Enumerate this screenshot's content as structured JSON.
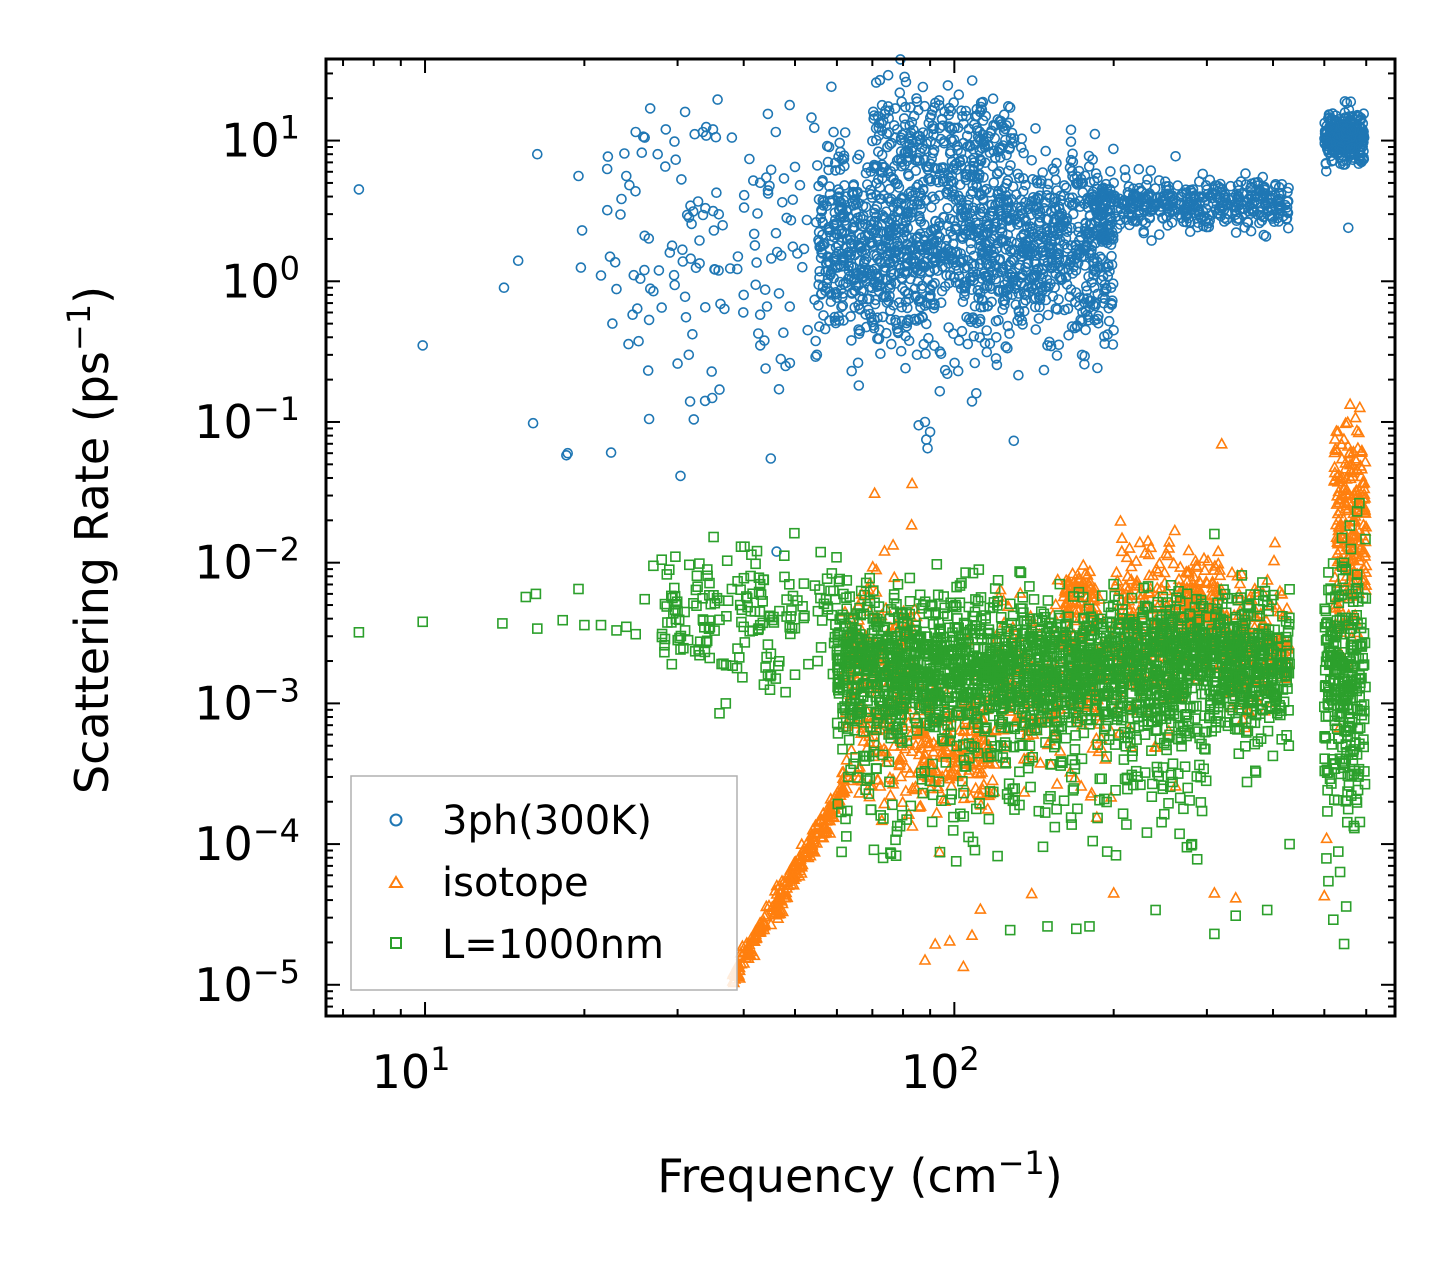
{
  "chart_data": {
    "type": "scatter",
    "title": "",
    "xlabel": "Frequency (cm",
    "xlabel_sup": "−1",
    "xlabel_end": ")",
    "ylabel": "Scattering Rate (ps",
    "ylabel_sup": "−1",
    "ylabel_end": ")",
    "x_scale": "log",
    "y_scale": "log",
    "xlim": [
      6.5,
      680
    ],
    "ylim": [
      6e-06,
      38
    ],
    "x_ticks": [
      {
        "value": 10,
        "base": "10",
        "exp": "1"
      },
      {
        "value": 100,
        "base": "10",
        "exp": "2"
      }
    ],
    "y_ticks": [
      {
        "value": 10,
        "base": "10",
        "exp": "1"
      },
      {
        "value": 1,
        "base": "10",
        "exp": "0"
      },
      {
        "value": 0.1,
        "base": "10",
        "exp": "−1"
      },
      {
        "value": 0.01,
        "base": "10",
        "exp": "−2"
      },
      {
        "value": 0.001,
        "base": "10",
        "exp": "−3"
      },
      {
        "value": 0.0001,
        "base": "10",
        "exp": "−4"
      },
      {
        "value": 1e-05,
        "base": "10",
        "exp": "−5"
      }
    ],
    "legend_position": "bottom-left",
    "series": [
      {
        "name": "3ph(300K)",
        "marker": "circle",
        "color": "#1f77b4",
        "points": [
          [
            7.5,
            4.5
          ],
          [
            9.9,
            0.35
          ],
          [
            14.1,
            0.9
          ],
          [
            15.0,
            1.4
          ],
          [
            16.0,
            0.098
          ],
          [
            16.3,
            8.0
          ],
          [
            18.5,
            0.058
          ],
          [
            18.6,
            0.06
          ],
          [
            19.5,
            5.6
          ],
          [
            19.7,
            1.25
          ],
          [
            19.8,
            2.3
          ],
          [
            21.5,
            1.1
          ],
          [
            23.0,
            0.88
          ],
          [
            23.8,
            8.1
          ],
          [
            24.0,
            5.6
          ],
          [
            25.0,
            11.5
          ],
          [
            26.0,
            10.5
          ],
          [
            26.5,
            0.105
          ],
          [
            27.0,
            0.85
          ],
          [
            28.0,
            0.65
          ],
          [
            28.5,
            12.0
          ],
          [
            29.0,
            1.6
          ],
          [
            30.0,
            0.26
          ],
          [
            30.5,
            5.3
          ],
          [
            31.0,
            16.0
          ],
          [
            31.5,
            0.3
          ],
          [
            32.0,
            0.42
          ],
          [
            33.5,
            11.5
          ],
          [
            35.0,
            12.0
          ],
          [
            36.0,
            0.17
          ],
          [
            36.5,
            2.5
          ],
          [
            38.0,
            10.5
          ],
          [
            39.0,
            1.5
          ],
          [
            40.0,
            0.8
          ],
          [
            41.0,
            7.4
          ],
          [
            42.0,
            1.8
          ],
          [
            43.0,
            0.35
          ],
          [
            44.0,
            0.24
          ],
          [
            45.0,
            0.055
          ],
          [
            46.0,
            11.5
          ],
          [
            47.0,
            0.28
          ],
          [
            48.0,
            0.25
          ],
          [
            50.0,
            6.5
          ],
          [
            52.0,
            1.7
          ],
          [
            55.0,
            0.3
          ],
          [
            58.0,
            9.0
          ],
          [
            62.0,
            4.8
          ],
          [
            64.0,
            0.23
          ],
          [
            75.0,
            17.5
          ],
          [
            78.0,
            12.0
          ],
          [
            85.0,
            0.3
          ],
          [
            88.0,
            0.1
          ],
          [
            88.5,
            0.075
          ],
          [
            89.0,
            0.065
          ],
          [
            90.0,
            0.085
          ],
          [
            97.0,
            0.22
          ],
          [
            108.0,
            0.14
          ],
          [
            110.0,
            0.16
          ],
          [
            120.0,
            0.4
          ],
          [
            135.0,
            0.7
          ],
          [
            150.0,
            0.35
          ],
          [
            200.0,
            5.0
          ],
          [
            210.0,
            6.2
          ],
          [
            228.0,
            2.2
          ],
          [
            275.0,
            3.5
          ],
          [
            300.0,
            2.8
          ],
          [
            335.0,
            3.9
          ],
          [
            390.0,
            3.3
          ],
          [
            425.0,
            2.8
          ],
          [
            510.0,
            10.0
          ],
          [
            540.0,
            11.0
          ],
          [
            555.0,
            2.4
          ],
          [
            560.0,
            8.0
          ],
          [
            580.0,
            15.0
          ]
        ],
        "clusters": [
          {
            "x_range": [
              22,
              62
            ],
            "logy_mean": 0.3,
            "logy_sd": 0.55,
            "n": 130
          },
          {
            "x_range": [
              55,
              200
            ],
            "logy_mean": 0.25,
            "logy_sd": 0.33,
            "n": 1500
          },
          {
            "x_range": [
              70,
              130
            ],
            "logy_mean": 1.0,
            "logy_sd": 0.18,
            "n": 250
          },
          {
            "x_range": [
              180,
              430
            ],
            "logy_mean": 0.55,
            "logy_sd": 0.09,
            "n": 420
          },
          {
            "x_range": [
              500,
              595
            ],
            "logy_mean": 1.02,
            "logy_sd": 0.09,
            "n": 300
          }
        ]
      },
      {
        "name": "isotope",
        "marker": "triangle",
        "color": "#ff7f0e",
        "points": [
          [
            38.5,
            1.1e-05
          ],
          [
            39.0,
            1.15e-05
          ],
          [
            88.0,
            1.5e-05
          ],
          [
            92.0,
            1.95e-05
          ],
          [
            98.0,
            2.05e-05
          ],
          [
            104.0,
            1.35e-05
          ],
          [
            108.0,
            2.25e-05
          ],
          [
            112.0,
            3.45e-05
          ],
          [
            140.0,
            4.45e-05
          ],
          [
            200.0,
            4.5e-05
          ],
          [
            310.0,
            4.5e-05
          ],
          [
            320.0,
            0.07
          ],
          [
            340.0,
            4.15e-05
          ],
          [
            500.0,
            4.3e-05
          ],
          [
            505.0,
            0.00011
          ]
        ],
        "clusters": [
          {
            "x_range": [
              38,
              62
            ],
            "logy_mode": "ramp",
            "y_start": 1.1e-05,
            "y_end": 0.00025,
            "logy_sd": 0.05,
            "n": 240
          },
          {
            "x_range": [
              62,
              85
            ],
            "logy_mean": -2.9,
            "logy_sd": 0.45,
            "n": 220
          },
          {
            "x_range": [
              85,
              120
            ],
            "logy_mean": -3.35,
            "logy_sd": 0.22,
            "n": 200
          },
          {
            "x_range": [
              120,
              200
            ],
            "logy_mean": -2.9,
            "logy_sd": 0.3,
            "n": 200
          },
          {
            "x_range": [
              160,
              185
            ],
            "logy_mean": -2.25,
            "logy_sd": 0.12,
            "n": 80
          },
          {
            "x_range": [
              200,
              270
            ],
            "logy_mean": -2.5,
            "logy_sd": 0.35,
            "n": 200
          },
          {
            "x_range": [
              270,
              320
            ],
            "logy_mean": -2.35,
            "logy_sd": 0.18,
            "n": 140
          },
          {
            "x_range": [
              320,
              430
            ],
            "logy_mean": -2.6,
            "logy_sd": 0.25,
            "n": 150
          },
          {
            "x_range": [
              520,
              600
            ],
            "logy_mean": -1.8,
            "logy_sd": 0.4,
            "n": 220
          }
        ]
      },
      {
        "name": "L=1000nm",
        "marker": "square",
        "color": "#2ca02c",
        "points": [
          [
            7.5,
            0.0032
          ],
          [
            9.9,
            0.0038
          ],
          [
            14.0,
            0.0037
          ],
          [
            15.5,
            0.0057
          ],
          [
            16.2,
            0.006
          ],
          [
            16.3,
            0.0034
          ],
          [
            18.2,
            0.0039
          ],
          [
            19.5,
            0.0065
          ],
          [
            20.0,
            0.0036
          ],
          [
            21.5,
            0.0036
          ],
          [
            23.0,
            0.0033
          ],
          [
            24.0,
            0.0035
          ],
          [
            25.0,
            0.0031
          ],
          [
            26.0,
            0.0055
          ],
          [
            27.0,
            0.0095
          ],
          [
            28.0,
            0.0105
          ],
          [
            30.0,
            0.0045
          ],
          [
            31.0,
            0.0033
          ],
          [
            33.0,
            0.0022
          ],
          [
            34.5,
            0.0021
          ],
          [
            36.0,
            0.00085
          ],
          [
            37.0,
            0.001
          ],
          [
            38.0,
            0.0065
          ],
          [
            40.0,
            0.0035
          ],
          [
            42.0,
            0.0045
          ],
          [
            44.0,
            0.0018
          ],
          [
            46.0,
            0.0015
          ],
          [
            48.0,
            0.0012
          ],
          [
            50.0,
            0.0016
          ],
          [
            53.0,
            0.0019
          ],
          [
            56.0,
            0.0025
          ],
          [
            60.0,
            0.0022
          ],
          [
            62.0,
            0.00095
          ],
          [
            150.0,
            2.6e-05
          ],
          [
            170.0,
            2.5e-05
          ],
          [
            180.0,
            2.6e-05
          ],
          [
            240.0,
            3.4e-05
          ],
          [
            275.0,
            9.5e-05
          ],
          [
            310.0,
            2.3e-05
          ],
          [
            340.0,
            3.1e-05
          ],
          [
            390.0,
            3.4e-05
          ],
          [
            430.0,
            0.0001
          ],
          [
            520.0,
            2.9e-05
          ],
          [
            545.0,
            1.95e-05
          ],
          [
            550.0,
            3.6e-05
          ],
          [
            570.0,
            0.00013
          ],
          [
            585.0,
            0.0014
          ],
          [
            540.0,
            0.015
          ],
          [
            310.0,
            0.016
          ]
        ],
        "clusters": [
          {
            "x_range": [
              28,
              62
            ],
            "logy_mean": -2.35,
            "logy_sd": 0.2,
            "n": 170
          },
          {
            "x_range": [
              60,
              430
            ],
            "logy_mean": -2.75,
            "logy_sd": 0.25,
            "n": 2300
          },
          {
            "x_range": [
              60,
              300
            ],
            "logy_mean": -3.55,
            "logy_sd": 0.3,
            "n": 200
          },
          {
            "x_range": [
              500,
              600
            ],
            "logy_mean": -2.9,
            "logy_sd": 0.45,
            "n": 280
          }
        ]
      }
    ]
  }
}
